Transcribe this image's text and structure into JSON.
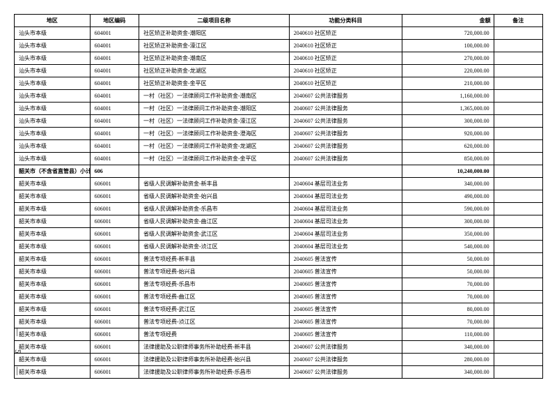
{
  "headers": {
    "region": "地区",
    "code": "地区编码",
    "project": "二级项目名称",
    "category": "功能分类科目",
    "amount": "金额",
    "remark": "备注"
  },
  "page_number": "— 5 —",
  "rows": [
    {
      "region": "汕头市本级",
      "code": "604001",
      "project": "社区矫正补助资金-潮阳区",
      "category": "2040610 社区矫正",
      "amount": "720,000.00",
      "bold": false
    },
    {
      "region": "汕头市本级",
      "code": "604001",
      "project": "社区矫正补助资金-濠江区",
      "category": "2040610 社区矫正",
      "amount": "100,000.00",
      "bold": false
    },
    {
      "region": "汕头市本级",
      "code": "604001",
      "project": "社区矫正补助资金-潮南区",
      "category": "2040610 社区矫正",
      "amount": "270,000.00",
      "bold": false
    },
    {
      "region": "汕头市本级",
      "code": "604001",
      "project": "社区矫正补助资金-龙湖区",
      "category": "2040610 社区矫正",
      "amount": "220,000.00",
      "bold": false
    },
    {
      "region": "汕头市本级",
      "code": "604001",
      "project": "社区矫正补助资金-金平区",
      "category": "2040610 社区矫正",
      "amount": "210,000.00",
      "bold": false
    },
    {
      "region": "汕头市本级",
      "code": "604001",
      "project": "一村（社区）一法律顾问工作补助资金-潮南区",
      "category": "2040607 公共法律服务",
      "amount": "1,160,000.00",
      "bold": false
    },
    {
      "region": "汕头市本级",
      "code": "604001",
      "project": "一村（社区）一法律顾问工作补助资金-潮阳区",
      "category": "2040607 公共法律服务",
      "amount": "1,365,000.00",
      "bold": false
    },
    {
      "region": "汕头市本级",
      "code": "604001",
      "project": "一村（社区）一法律顾问工作补助资金-濠江区",
      "category": "2040607 公共法律服务",
      "amount": "300,000.00",
      "bold": false
    },
    {
      "region": "汕头市本级",
      "code": "604001",
      "project": "一村（社区）一法律顾问工作补助资金-澄海区",
      "category": "2040607 公共法律服务",
      "amount": "920,000.00",
      "bold": false
    },
    {
      "region": "汕头市本级",
      "code": "604001",
      "project": "一村（社区）一法律顾问工作补助资金-龙湖区",
      "category": "2040607 公共法律服务",
      "amount": "620,000.00",
      "bold": false
    },
    {
      "region": "汕头市本级",
      "code": "604001",
      "project": "一村（社区）一法律顾问工作补助资金-金平区",
      "category": "2040607 公共法律服务",
      "amount": "850,000.00",
      "bold": false
    },
    {
      "region": "韶关市（不含省直管县）小计",
      "code": "606",
      "project": "",
      "category": "",
      "amount": "10,240,000.00",
      "bold": true
    },
    {
      "region": "韶关市本级",
      "code": "606001",
      "project": "省级人民调解补助资金-新丰县",
      "category": "2040604 基层司法业务",
      "amount": "340,000.00",
      "bold": false
    },
    {
      "region": "韶关市本级",
      "code": "606001",
      "project": "省级人民调解补助资金-始兴县",
      "category": "2040604 基层司法业务",
      "amount": "490,000.00",
      "bold": false
    },
    {
      "region": "韶关市本级",
      "code": "606001",
      "project": "省级人民调解补助资金-乐昌市",
      "category": "2040604 基层司法业务",
      "amount": "590,000.00",
      "bold": false
    },
    {
      "region": "韶关市本级",
      "code": "606001",
      "project": "省级人民调解补助资金-曲江区",
      "category": "2040604 基层司法业务",
      "amount": "300,000.00",
      "bold": false
    },
    {
      "region": "韶关市本级",
      "code": "606001",
      "project": "省级人民调解补助资金-武江区",
      "category": "2040604 基层司法业务",
      "amount": "350,000.00",
      "bold": false
    },
    {
      "region": "韶关市本级",
      "code": "606001",
      "project": "省级人民调解补助资金-浈江区",
      "category": "2040604 基层司法业务",
      "amount": "540,000.00",
      "bold": false
    },
    {
      "region": "韶关市本级",
      "code": "606001",
      "project": "普法专项经费-新丰县",
      "category": "2040605 普法宣传",
      "amount": "50,000.00",
      "bold": false
    },
    {
      "region": "韶关市本级",
      "code": "606001",
      "project": "普法专项经费-始兴县",
      "category": "2040605 普法宣传",
      "amount": "50,000.00",
      "bold": false
    },
    {
      "region": "韶关市本级",
      "code": "606001",
      "project": "普法专项经费-乐昌市",
      "category": "2040605 普法宣传",
      "amount": "70,000.00",
      "bold": false
    },
    {
      "region": "韶关市本级",
      "code": "606001",
      "project": "普法专项经费-曲江区",
      "category": "2040605 普法宣传",
      "amount": "70,000.00",
      "bold": false
    },
    {
      "region": "韶关市本级",
      "code": "606001",
      "project": "普法专项经费-武江区",
      "category": "2040605 普法宣传",
      "amount": "80,000.00",
      "bold": false
    },
    {
      "region": "韶关市本级",
      "code": "606001",
      "project": "普法专项经费-浈江区",
      "category": "2040605 普法宣传",
      "amount": "70,000.00",
      "bold": false
    },
    {
      "region": "韶关市本级",
      "code": "606001",
      "project": "普法专项经费",
      "category": "2040605 普法宣传",
      "amount": "110,000.00",
      "bold": false
    },
    {
      "region": "韶关市本级",
      "code": "606001",
      "project": "法律援助及公职律师事务所补助经费-新丰县",
      "category": "2040607 公共法律服务",
      "amount": "340,000.00",
      "bold": false
    },
    {
      "region": "韶关市本级",
      "code": "606001",
      "project": "法律援助及公职律师事务所补助经费-始兴县",
      "category": "2040607 公共法律服务",
      "amount": "280,000.00",
      "bold": false
    },
    {
      "region": "韶关市本级",
      "code": "606001",
      "project": "法律援助及公职律师事务所补助经费-乐昌市",
      "category": "2040607 公共法律服务",
      "amount": "340,000.00",
      "bold": false
    }
  ]
}
